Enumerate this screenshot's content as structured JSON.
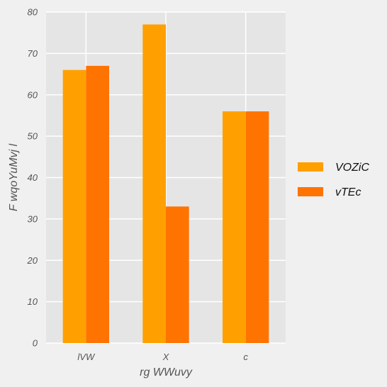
{
  "chart_data": {
    "type": "bar",
    "categories": [
      "lVW",
      "X",
      "c"
    ],
    "series": [
      {
        "name": "VOZiC",
        "values": [
          66,
          77,
          56
        ],
        "color": "#ffa000"
      },
      {
        "name": "vTEc",
        "values": [
          67,
          33,
          56
        ],
        "color": "#ff7300"
      }
    ],
    "xlabel": "rg WWuvy",
    "ylabel": "F wqoYuMvj l",
    "ylim": [
      0,
      80
    ],
    "yticks": [
      0,
      10,
      20,
      30,
      40,
      50,
      60,
      70,
      80
    ],
    "grid": true,
    "legend": "right",
    "colors": {
      "plot_background": "#e5e5e5",
      "figure_background": "#f0f0f0",
      "grid": "#ffffff"
    }
  }
}
